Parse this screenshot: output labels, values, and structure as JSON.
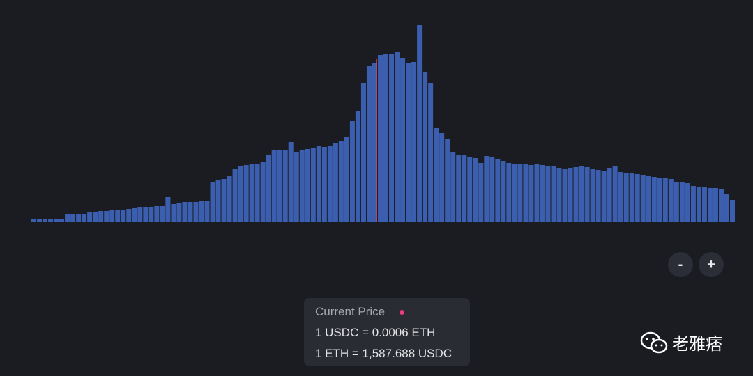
{
  "chart_data": {
    "type": "bar",
    "color": "#3b5fae",
    "values": [
      4,
      4,
      4,
      4,
      5,
      5,
      11,
      11,
      11,
      12,
      15,
      15,
      16,
      16,
      17,
      18,
      18,
      19,
      20,
      22,
      22,
      22,
      23,
      23,
      36,
      26,
      28,
      29,
      29,
      29,
      30,
      31,
      58,
      61,
      62,
      66,
      76,
      80,
      82,
      83,
      84,
      86,
      96,
      104,
      104,
      104,
      115,
      100,
      103,
      105,
      107,
      110,
      108,
      110,
      113,
      116,
      122,
      145,
      160,
      200,
      224,
      228,
      240,
      241,
      242,
      245,
      235,
      228,
      230,
      283,
      215,
      200,
      135,
      128,
      120,
      100,
      97,
      96,
      94,
      92,
      85,
      95,
      93,
      90,
      88,
      85,
      84,
      84,
      83,
      82,
      83,
      82,
      80,
      80,
      78,
      77,
      78,
      79,
      80,
      79,
      77,
      75,
      73,
      78,
      80,
      72,
      71,
      70,
      69,
      68,
      66,
      65,
      64,
      63,
      62,
      58,
      57,
      56,
      52,
      51,
      50,
      49,
      49,
      48,
      40,
      32
    ]
  },
  "controls": {
    "zoom_out": "-",
    "zoom_in": "+"
  },
  "price_card": {
    "title": "Current Price",
    "line1": "1 USDC = 0.0006 ETH",
    "line2": "1 ETH = 1,587.688 USDC"
  },
  "watermark": "老雅痞"
}
